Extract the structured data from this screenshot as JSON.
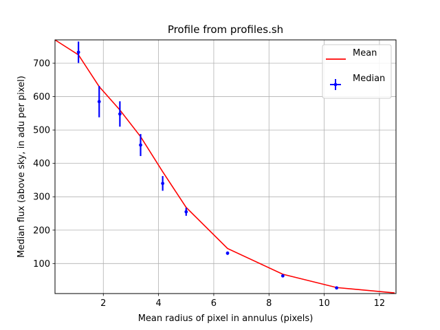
{
  "chart_data": {
    "type": "line",
    "title": "Profile from profiles.sh",
    "xlabel": "Mean radius of pixel in annulus (pixels)",
    "ylabel": "Median flux (above sky, in adu per pixel)",
    "xlim": [
      0.25,
      12.6
    ],
    "ylim": [
      10,
      770
    ],
    "xticks": [
      2,
      4,
      6,
      8,
      10,
      12
    ],
    "yticks": [
      100,
      200,
      300,
      400,
      500,
      600,
      700
    ],
    "grid": true,
    "legend_position": "top-right",
    "series": [
      {
        "name": "Mean",
        "kind": "line",
        "color": "#ff0000",
        "x": [
          0.25,
          1.1,
          1.85,
          2.6,
          3.35,
          4.15,
          5.0,
          6.5,
          8.5,
          10.45,
          12.55
        ],
        "y": [
          770,
          725,
          630,
          560,
          480,
          375,
          268,
          145,
          68,
          28,
          12
        ]
      },
      {
        "name": "Median",
        "kind": "errorbar",
        "color": "#0000ff",
        "x": [
          1.1,
          1.85,
          2.6,
          3.35,
          4.15,
          5.0,
          6.5,
          8.5,
          10.45
        ],
        "y": [
          733,
          585,
          548,
          455,
          340,
          255,
          131,
          63,
          27
        ],
        "err": [
          32,
          47,
          38,
          33,
          22,
          12,
          5,
          3,
          2
        ]
      }
    ]
  }
}
